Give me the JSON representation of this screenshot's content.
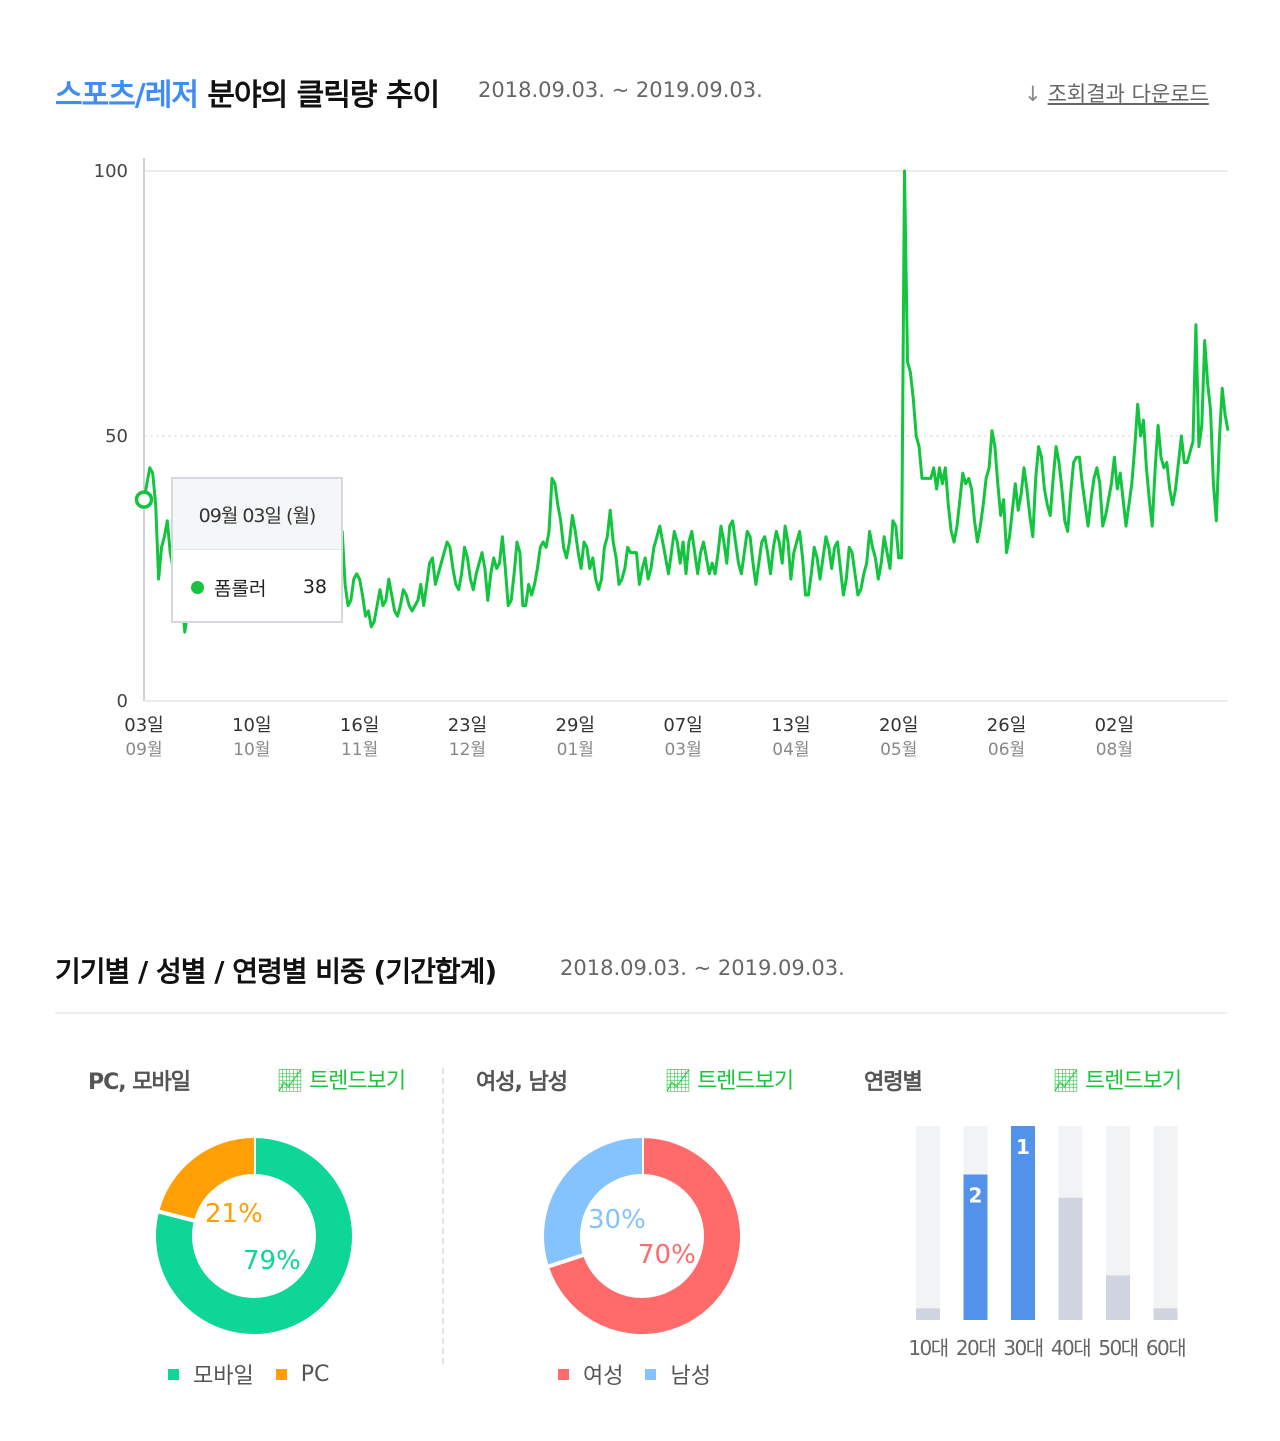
{
  "section1": {
    "title_category": "스포츠/레저",
    "title_rest": " 분야의 클릭량 추이",
    "period": "2018.09.03. ~ 2019.09.03.",
    "download_label": "조회결과 다운로드",
    "download_icon": "download-arrow-icon"
  },
  "tooltip": {
    "date": "09월 03일 (월)",
    "series": "폼롤러",
    "value": "38"
  },
  "colors": {
    "line": "#13c43f",
    "mobile": "#0dd697",
    "pc": "#ff9f06",
    "female": "#ff6b6b",
    "male": "#84c3ff",
    "age_highlight": "#5392ea",
    "age_normal": "#cfd4e0",
    "age_track": "#f2f3f5",
    "accent_title": "#3f8cf5"
  },
  "section2": {
    "title": "기기별 / 성별 / 연령별 비중 (기간합계)",
    "period": "2018.09.03. ~ 2019.09.03.",
    "device": {
      "title": "PC, 모바일",
      "trend_label": "트렌드보기",
      "legend": [
        "모바일",
        "PC"
      ],
      "pct_pc": "21%",
      "pct_mobile": "79%"
    },
    "gender": {
      "title": "여성, 남성",
      "trend_label": "트렌드보기",
      "legend": [
        "여성",
        "남성"
      ],
      "pct_male": "30%",
      "pct_female": "70%"
    },
    "age": {
      "title": "연령별",
      "trend_label": "트렌드보기",
      "labels": [
        "10대",
        "20대",
        "30대",
        "40대",
        "50대",
        "60대"
      ],
      "rank_labels": [
        "",
        "2",
        "1",
        "",
        "",
        ""
      ]
    }
  },
  "chart_data": [
    {
      "type": "line",
      "title": "",
      "series": [
        {
          "name": "폼롤러",
          "values": [
            38,
            41,
            44,
            43,
            37,
            23,
            29,
            31,
            34,
            28,
            25,
            22,
            21,
            19,
            13,
            17,
            22,
            25,
            24,
            21,
            23,
            25,
            22,
            19,
            21,
            24,
            26,
            23,
            20,
            22,
            25,
            21,
            19,
            17,
            20,
            24,
            22,
            26,
            25,
            20,
            24,
            26,
            26,
            19,
            21,
            18,
            20,
            26,
            25,
            22,
            19,
            17,
            20,
            24,
            22,
            21,
            19,
            18,
            23,
            21,
            20,
            17,
            19,
            24,
            22,
            23,
            21,
            25,
            32,
            22,
            18,
            19,
            23,
            24,
            23,
            20,
            16,
            17,
            14,
            15,
            18,
            21,
            18,
            19,
            23,
            20,
            17,
            16,
            18,
            21,
            20,
            18,
            17,
            18,
            19,
            22,
            18,
            22,
            26,
            27,
            22,
            24,
            26,
            28,
            30,
            29,
            25,
            22,
            21,
            24,
            29,
            27,
            23,
            21,
            24,
            26,
            28,
            25,
            19,
            24,
            27,
            25,
            26,
            31,
            25,
            18,
            19,
            24,
            30,
            28,
            18,
            18,
            22,
            20,
            22,
            25,
            29,
            30,
            29,
            32,
            42,
            41,
            37,
            34,
            29,
            27,
            30,
            35,
            32,
            28,
            25,
            30,
            29,
            25,
            27,
            23,
            21,
            23,
            29,
            31,
            36,
            30,
            27,
            22,
            23,
            25,
            29,
            28,
            28,
            28,
            22,
            25,
            27,
            23,
            25,
            29,
            31,
            33,
            30,
            27,
            24,
            28,
            32,
            30,
            26,
            30,
            24,
            30,
            32,
            28,
            24,
            28,
            30,
            27,
            24,
            26,
            24,
            28,
            33,
            30,
            26,
            33,
            34,
            30,
            26,
            24,
            28,
            32,
            31,
            26,
            22,
            26,
            30,
            31,
            28,
            24,
            29,
            32,
            30,
            26,
            33,
            30,
            23,
            28,
            30,
            32,
            27,
            20,
            20,
            24,
            29,
            27,
            23,
            27,
            31,
            29,
            25,
            29,
            30,
            25,
            20,
            23,
            29,
            28,
            24,
            20,
            21,
            24,
            26,
            32,
            29,
            27,
            23,
            26,
            31,
            28,
            25,
            34,
            33,
            27,
            27,
            100,
            64,
            62,
            57,
            50,
            48,
            42,
            42,
            42,
            42,
            44,
            40,
            44,
            41,
            44,
            37,
            32,
            30,
            33,
            38,
            43,
            41,
            42,
            40,
            34,
            30,
            33,
            37,
            42,
            44,
            51,
            48,
            41,
            35,
            38,
            28,
            31,
            36,
            41,
            36,
            39,
            44,
            40,
            35,
            31,
            42,
            48,
            46,
            40,
            37,
            35,
            42,
            48,
            45,
            40,
            34,
            32,
            39,
            45,
            46,
            46,
            41,
            37,
            33,
            38,
            42,
            44,
            41,
            33,
            35,
            38,
            41,
            46,
            40,
            43,
            38,
            33,
            37,
            41,
            48,
            56,
            50,
            53,
            44,
            38,
            33,
            44,
            52,
            46,
            44,
            45,
            40,
            37,
            40,
            45,
            50,
            45,
            45,
            47,
            49,
            71,
            48,
            52,
            68,
            60,
            55,
            41,
            34,
            49,
            59,
            54,
            51
          ]
        }
      ],
      "ylim": [
        0,
        100
      ],
      "yticks": [
        0,
        50,
        100
      ],
      "x_tick_days": [
        "03일",
        "10일",
        "16일",
        "23일",
        "29일",
        "07일",
        "13일",
        "20일",
        "26일",
        "02일"
      ],
      "x_tick_months": [
        "09월",
        "10월",
        "11월",
        "12월",
        "01월",
        "03월",
        "04월",
        "05월",
        "06월",
        "08월"
      ],
      "x_tick_index": [
        0,
        37,
        74,
        111,
        148,
        185,
        222,
        259,
        296,
        333
      ],
      "grid": "dashed at 50 and 100",
      "highlight_index": 0
    },
    {
      "type": "pie",
      "title": "PC, 모바일",
      "categories": [
        "모바일",
        "PC"
      ],
      "values": [
        79,
        21
      ]
    },
    {
      "type": "pie",
      "title": "여성, 남성",
      "categories": [
        "여성",
        "남성"
      ],
      "values": [
        70,
        30
      ]
    },
    {
      "type": "bar",
      "title": "연령별",
      "categories": [
        "10대",
        "20대",
        "30대",
        "40대",
        "50대",
        "60대"
      ],
      "values": [
        6,
        75,
        100,
        63,
        23,
        6
      ],
      "ylim": [
        0,
        100
      ]
    }
  ]
}
